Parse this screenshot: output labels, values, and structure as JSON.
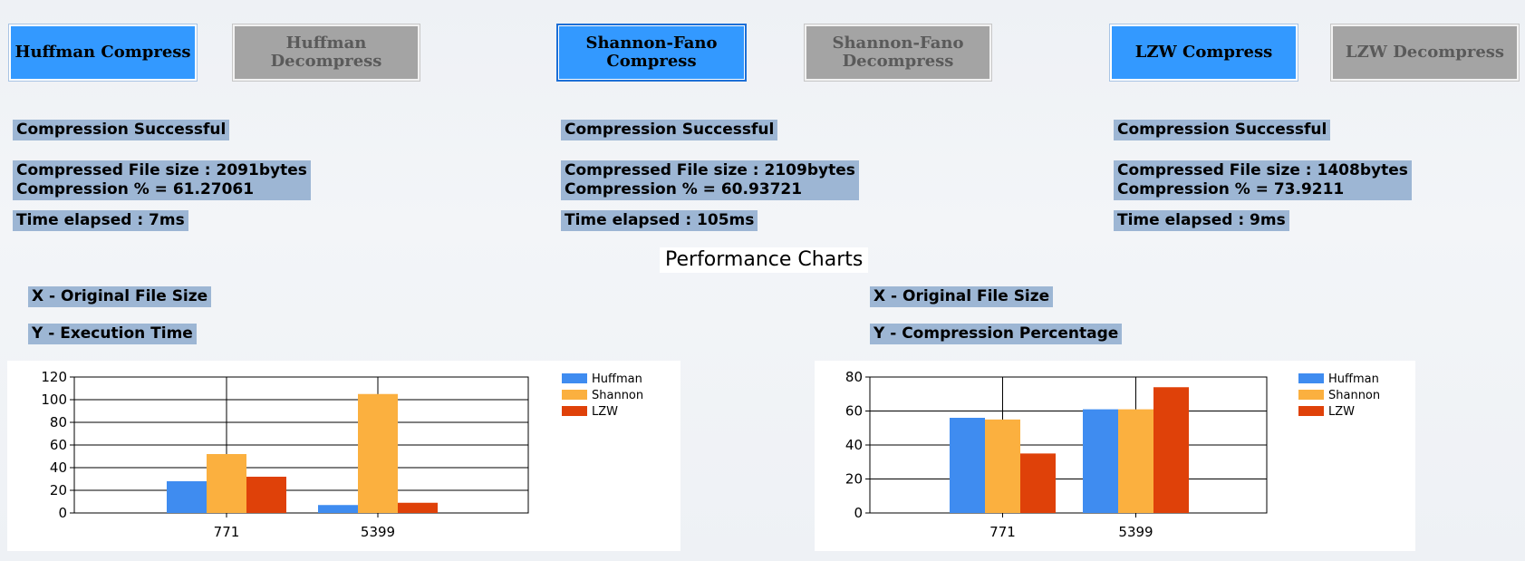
{
  "buttons": [
    {
      "label": "Huffman Compress",
      "state": "active"
    },
    {
      "label": "Huffman Decompress",
      "state": "inactive"
    },
    {
      "label": "Shannon-Fano Compress",
      "state": "active"
    },
    {
      "label": "Shannon-Fano Decompress",
      "state": "inactive"
    },
    {
      "label": "LZW Compress",
      "state": "active"
    },
    {
      "label": "LZW Decompress",
      "state": "inactive"
    }
  ],
  "results": {
    "huffman": {
      "status": "Compression Successful",
      "size": "Compressed File size : 2091bytes",
      "percent": "Compression % = 61.27061",
      "time": "Time elapsed : 7ms"
    },
    "shannon": {
      "status": "Compression Successful",
      "size": "Compressed File size : 2109bytes",
      "percent": "Compression % = 60.93721",
      "time": "Time elapsed : 105ms"
    },
    "lzw": {
      "status": "Compression Successful",
      "size": "Compressed File size : 1408bytes",
      "percent": "Compression % = 73.9211",
      "time": "Time elapsed : 9ms"
    }
  },
  "charts_title": "Performance Charts",
  "left_chart_labels": {
    "x": "X - Original File Size",
    "y": "Y - Execution Time"
  },
  "right_chart_labels": {
    "x": "X - Original File Size",
    "y": "Y - Compression Percentage"
  },
  "colors": {
    "huffman": "#3f8cf0",
    "shannon": "#fbb03f",
    "lzw": "#df4109",
    "active_button": "#3399ff",
    "inactive_button": "#a4a4a4",
    "label_bg": "#9db6d4"
  },
  "chart_data": [
    {
      "type": "bar",
      "categories": [
        "771",
        "5399"
      ],
      "series": [
        {
          "name": "Huffman",
          "values": [
            28,
            7
          ]
        },
        {
          "name": "Shannon",
          "values": [
            52,
            105
          ]
        },
        {
          "name": "LZW",
          "values": [
            32,
            9
          ]
        }
      ],
      "ylim": [
        0,
        120
      ],
      "yticks": [
        0,
        20,
        40,
        60,
        80,
        100,
        120
      ],
      "grid": true,
      "legend": "top-right"
    },
    {
      "type": "bar",
      "categories": [
        "771",
        "5399"
      ],
      "series": [
        {
          "name": "Huffman",
          "values": [
            56,
            61
          ]
        },
        {
          "name": "Shannon",
          "values": [
            55,
            61
          ]
        },
        {
          "name": "LZW",
          "values": [
            35,
            74
          ]
        }
      ],
      "ylim": [
        0,
        80
      ],
      "yticks": [
        0,
        20,
        40,
        60,
        80
      ],
      "grid": true,
      "legend": "top-right"
    }
  ]
}
